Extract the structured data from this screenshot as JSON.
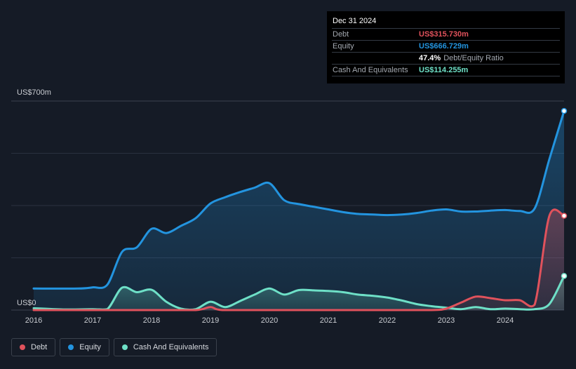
{
  "colors": {
    "background": "#151b26",
    "debt": "#e0525c",
    "equity": "#2394df",
    "cash": "#6ee0c7",
    "grid": "#2a3140"
  },
  "tooltip": {
    "date": "Dec 31 2024",
    "debt_label": "Debt",
    "debt_value": "US$315.730m",
    "equity_label": "Equity",
    "equity_value": "US$666.729m",
    "ratio_value": "47.4%",
    "ratio_label": "Debt/Equity Ratio",
    "cash_label": "Cash And Equivalents",
    "cash_value": "US$114.255m"
  },
  "legend": [
    {
      "label": "Debt",
      "color": "#e0525c"
    },
    {
      "label": "Equity",
      "color": "#2394df"
    },
    {
      "label": "Cash And Equivalents",
      "color": "#6ee0c7"
    }
  ],
  "chart_data": {
    "type": "area",
    "ylim": [
      0,
      700
    ],
    "y_ticks": [
      {
        "value": 700,
        "label": "US$700m"
      },
      {
        "value": 0,
        "label": "US$0"
      }
    ],
    "x_ticks": [
      2016,
      2017,
      2018,
      2019,
      2020,
      2021,
      2022,
      2023,
      2024
    ],
    "xlim": [
      2016.0,
      2025.0
    ],
    "series": [
      {
        "name": "Debt",
        "color": "#e0525c",
        "points": [
          [
            2016.0,
            0
          ],
          [
            2017.0,
            0
          ],
          [
            2018.0,
            0
          ],
          [
            2018.75,
            0
          ],
          [
            2019.0,
            10
          ],
          [
            2019.2,
            0
          ],
          [
            2020.0,
            0
          ],
          [
            2021.0,
            0
          ],
          [
            2022.0,
            0
          ],
          [
            2022.75,
            0
          ],
          [
            2023.0,
            5
          ],
          [
            2023.25,
            25
          ],
          [
            2023.5,
            45
          ],
          [
            2023.75,
            40
          ],
          [
            2024.0,
            33
          ],
          [
            2024.25,
            33
          ],
          [
            2024.5,
            18
          ],
          [
            2024.75,
            315
          ],
          [
            2025.0,
            315.73
          ]
        ]
      },
      {
        "name": "Equity",
        "color": "#2394df",
        "points": [
          [
            2016.0,
            72
          ],
          [
            2016.75,
            72
          ],
          [
            2017.0,
            76
          ],
          [
            2017.25,
            85
          ],
          [
            2017.5,
            195
          ],
          [
            2017.75,
            210
          ],
          [
            2018.0,
            272
          ],
          [
            2018.25,
            258
          ],
          [
            2018.5,
            282
          ],
          [
            2018.75,
            308
          ],
          [
            2019.0,
            357
          ],
          [
            2019.25,
            378
          ],
          [
            2019.5,
            395
          ],
          [
            2019.75,
            410
          ],
          [
            2020.0,
            425
          ],
          [
            2020.25,
            368
          ],
          [
            2020.5,
            355
          ],
          [
            2020.75,
            346
          ],
          [
            2021.0,
            337
          ],
          [
            2021.25,
            328
          ],
          [
            2021.5,
            322
          ],
          [
            2021.75,
            320
          ],
          [
            2022.0,
            318
          ],
          [
            2022.25,
            320
          ],
          [
            2022.5,
            325
          ],
          [
            2022.75,
            333
          ],
          [
            2023.0,
            337
          ],
          [
            2023.25,
            330
          ],
          [
            2023.5,
            330
          ],
          [
            2023.75,
            333
          ],
          [
            2024.0,
            335
          ],
          [
            2024.25,
            332
          ],
          [
            2024.5,
            340
          ],
          [
            2024.75,
            505
          ],
          [
            2025.0,
            666.729
          ]
        ]
      },
      {
        "name": "Cash And Equivalents",
        "color": "#6ee0c7",
        "points": [
          [
            2016.0,
            6
          ],
          [
            2016.5,
            2
          ],
          [
            2017.0,
            3
          ],
          [
            2017.25,
            3
          ],
          [
            2017.5,
            75
          ],
          [
            2017.75,
            60
          ],
          [
            2018.0,
            68
          ],
          [
            2018.25,
            28
          ],
          [
            2018.5,
            5
          ],
          [
            2018.75,
            3
          ],
          [
            2019.0,
            28
          ],
          [
            2019.25,
            10
          ],
          [
            2019.5,
            30
          ],
          [
            2019.75,
            52
          ],
          [
            2020.0,
            72
          ],
          [
            2020.25,
            52
          ],
          [
            2020.5,
            67
          ],
          [
            2020.75,
            66
          ],
          [
            2021.0,
            64
          ],
          [
            2021.25,
            60
          ],
          [
            2021.5,
            52
          ],
          [
            2021.75,
            48
          ],
          [
            2022.0,
            42
          ],
          [
            2022.25,
            32
          ],
          [
            2022.5,
            20
          ],
          [
            2022.75,
            13
          ],
          [
            2023.0,
            8
          ],
          [
            2023.25,
            3
          ],
          [
            2023.5,
            10
          ],
          [
            2023.75,
            3
          ],
          [
            2024.0,
            5
          ],
          [
            2024.25,
            3
          ],
          [
            2024.5,
            3
          ],
          [
            2024.75,
            20
          ],
          [
            2025.0,
            114.255
          ]
        ]
      }
    ]
  }
}
